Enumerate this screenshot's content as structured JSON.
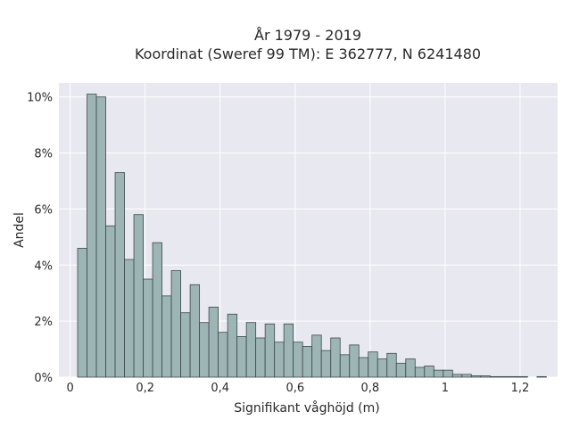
{
  "chart_data": {
    "type": "bar",
    "title_line1": "År 1979 - 2019",
    "title_line2": "Koordinat (Sweref 99 TM): E 362777, N 6241480",
    "xlabel": "Signifikant våghöjd (m)",
    "ylabel": "Andel",
    "xlim": [
      -0.03,
      1.3
    ],
    "ylim": [
      0,
      10.5
    ],
    "x_ticks": [
      {
        "value": 0,
        "label": "0"
      },
      {
        "value": 0.2,
        "label": "0,2"
      },
      {
        "value": 0.4,
        "label": "0,4"
      },
      {
        "value": 0.6,
        "label": "0,6"
      },
      {
        "value": 0.8,
        "label": "0,8"
      },
      {
        "value": 1.0,
        "label": "1"
      },
      {
        "value": 1.2,
        "label": "1,2"
      }
    ],
    "y_ticks": [
      {
        "value": 0,
        "label": "0%"
      },
      {
        "value": 2,
        "label": "2%"
      },
      {
        "value": 4,
        "label": "4%"
      },
      {
        "value": 6,
        "label": "6%"
      },
      {
        "value": 8,
        "label": "8%"
      },
      {
        "value": 10,
        "label": "10%"
      }
    ],
    "grid": true,
    "bin_width": 0.025,
    "bin_start": 0.02,
    "values_percent": [
      4.6,
      10.1,
      10.0,
      5.4,
      7.3,
      4.2,
      5.8,
      3.5,
      4.8,
      2.9,
      3.8,
      2.3,
      3.3,
      1.95,
      2.5,
      1.6,
      2.25,
      1.45,
      1.95,
      1.4,
      1.9,
      1.25,
      1.9,
      1.25,
      1.1,
      1.5,
      0.95,
      1.4,
      0.8,
      1.15,
      0.7,
      0.9,
      0.65,
      0.85,
      0.5,
      0.65,
      0.35,
      0.4,
      0.25,
      0.25,
      0.1,
      0.1,
      0.05,
      0.05,
      0.02,
      0.02,
      0.02,
      0.02,
      0.0,
      0.02
    ],
    "colors": {
      "bar_fill": "#9db5b5",
      "bar_stroke": "#3d4a4a",
      "plot_bg": "#e8e8f0",
      "grid": "#ffffff"
    }
  }
}
